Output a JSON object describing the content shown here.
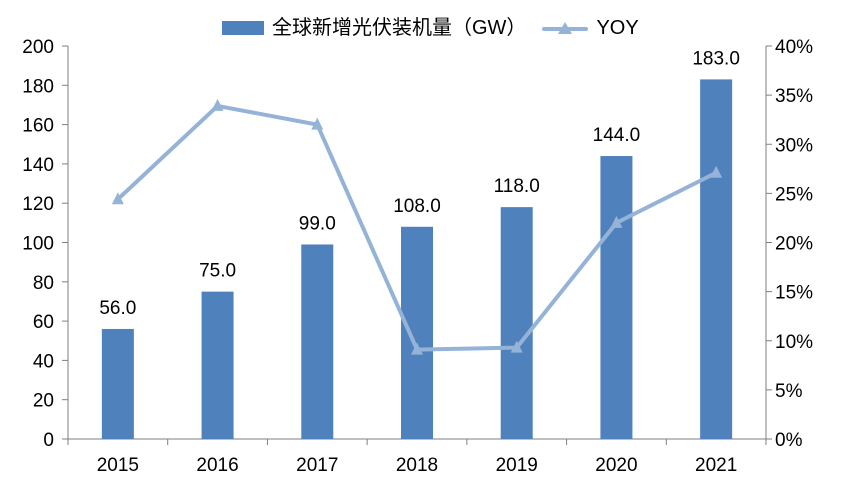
{
  "chart_data": {
    "type": "bar",
    "categories": [
      "2015",
      "2016",
      "2017",
      "2018",
      "2019",
      "2020",
      "2021"
    ],
    "series": [
      {
        "name": "全球新增光伏装机量（GW）",
        "type": "bar",
        "axis": "left",
        "values": [
          56.0,
          75.0,
          99.0,
          108.0,
          118.0,
          144.0,
          183.0
        ],
        "value_labels": [
          "56.0",
          "75.0",
          "99.0",
          "108.0",
          "118.0",
          "144.0",
          "183.0"
        ],
        "color": "#4f81bd"
      },
      {
        "name": "YOY",
        "type": "line",
        "axis": "right",
        "values": [
          24.4,
          33.9,
          32.0,
          9.1,
          9.3,
          22.0,
          27.1
        ],
        "color": "#95b3d7"
      }
    ],
    "left_ylim": [
      0,
      200
    ],
    "left_ticks": [
      "0",
      "20",
      "40",
      "60",
      "80",
      "100",
      "120",
      "140",
      "160",
      "180",
      "200"
    ],
    "right_ylim": [
      0,
      40
    ],
    "right_ticks": [
      "0%",
      "5%",
      "10%",
      "15%",
      "20%",
      "25%",
      "30%",
      "35%",
      "40%"
    ],
    "legend_position": "top-center",
    "grid": false
  },
  "colors": {
    "bar": "#4f81bd",
    "line": "#95b3d7",
    "axis": "#7f7f7f",
    "text": "#000000"
  }
}
